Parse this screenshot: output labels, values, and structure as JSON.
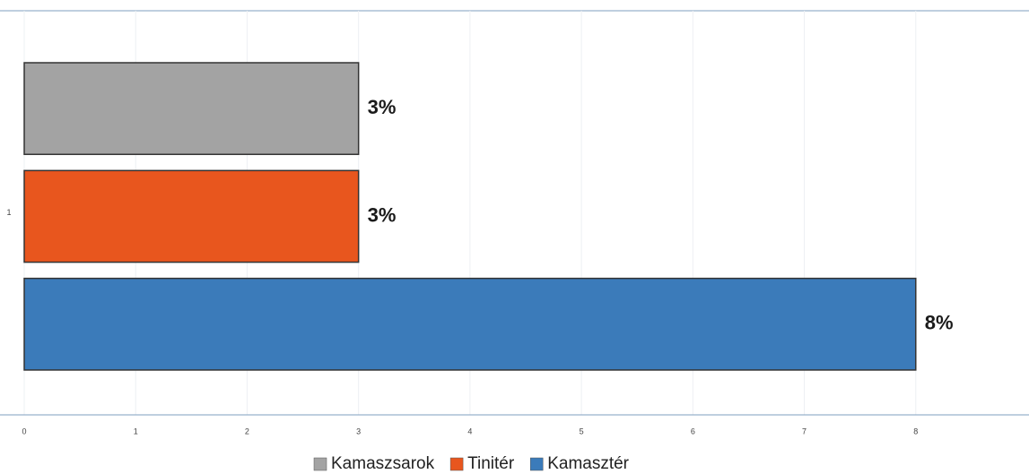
{
  "chart_data": {
    "type": "hbar",
    "categories": [
      "1"
    ],
    "series": [
      {
        "name": "Kamaszsarok",
        "color": "#a3a3a3",
        "values": [
          3
        ],
        "value_labels": [
          "3%"
        ]
      },
      {
        "name": "Tinitér",
        "color": "#e8561e",
        "values": [
          3
        ],
        "value_labels": [
          "3%"
        ]
      },
      {
        "name": "Kamasztér",
        "color": "#3b7bba",
        "values": [
          8
        ],
        "value_labels": [
          "8%"
        ]
      }
    ],
    "xlim": [
      0,
      9
    ],
    "xticks": [
      0,
      1,
      2,
      3,
      4,
      5,
      6,
      7,
      8
    ],
    "grid": true,
    "legend": "bottom"
  }
}
